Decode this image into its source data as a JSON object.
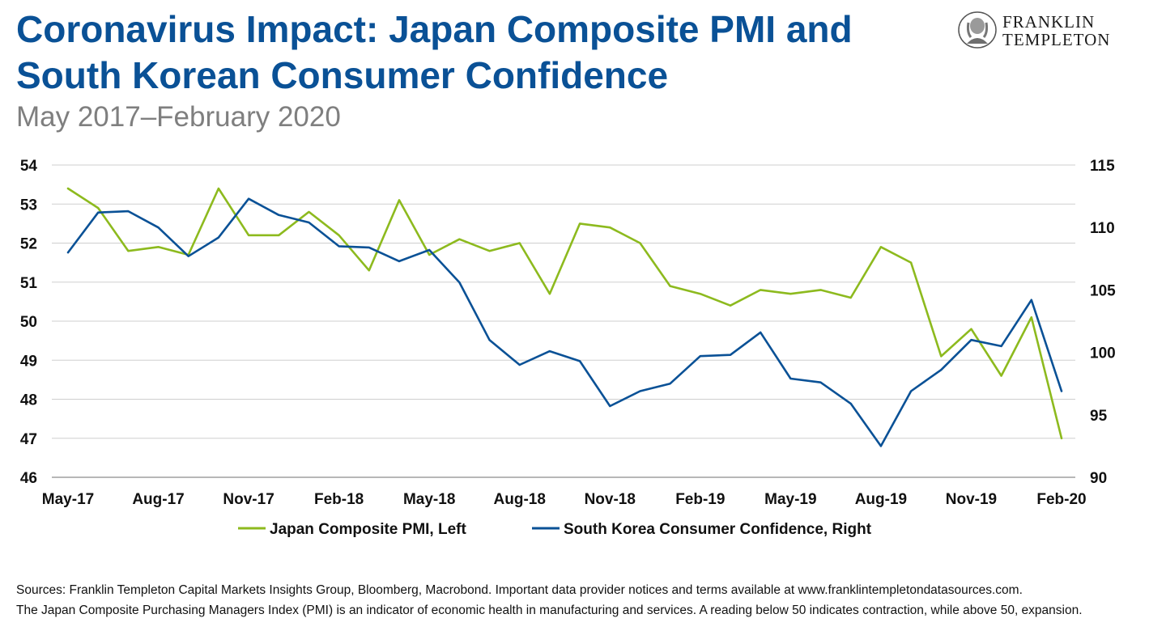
{
  "header": {
    "title_line1": "Coronavirus Impact: Japan Composite PMI and",
    "title_line2": "South Korean Consumer Confidence",
    "subtitle": "May 2017–February 2020"
  },
  "logo": {
    "line1": "FRANKLIN",
    "line2": "TEMPLETON",
    "icon": "benjamin-franklin-portrait-icon"
  },
  "footnotes": {
    "sources": "Sources: Franklin Templeton Capital Markets Insights Group, Bloomberg, Macrobond. Important data provider notices and terms available at www.franklintempletondatasources.com.",
    "note": "The Japan Composite Purchasing Managers Index (PMI) is an indicator of economic health in manufacturing and services. A reading below 50 indicates contraction, while above 50, expansion."
  },
  "chart_data": {
    "type": "line",
    "x": [
      "May-17",
      "Jun-17",
      "Jul-17",
      "Aug-17",
      "Sep-17",
      "Oct-17",
      "Nov-17",
      "Dec-17",
      "Jan-18",
      "Feb-18",
      "Mar-18",
      "Apr-18",
      "May-18",
      "Jun-18",
      "Jul-18",
      "Aug-18",
      "Sep-18",
      "Oct-18",
      "Nov-18",
      "Dec-18",
      "Jan-19",
      "Feb-19",
      "Mar-19",
      "Apr-19",
      "May-19",
      "Jun-19",
      "Jul-19",
      "Aug-19",
      "Sep-19",
      "Oct-19",
      "Nov-19",
      "Dec-19",
      "Jan-20",
      "Feb-20"
    ],
    "x_tick_labels": [
      "May-17",
      "Aug-17",
      "Nov-17",
      "Feb-18",
      "May-18",
      "Aug-18",
      "Nov-18",
      "Feb-19",
      "May-19",
      "Aug-19",
      "Nov-19",
      "Feb-20"
    ],
    "left_axis": {
      "ylim": [
        46,
        54
      ],
      "ticks": [
        46,
        47,
        48,
        49,
        50,
        51,
        52,
        53,
        54
      ]
    },
    "right_axis": {
      "ylim": [
        90,
        115
      ],
      "ticks": [
        90,
        95,
        100,
        105,
        110,
        115
      ]
    },
    "grid": true,
    "legend_position": "bottom",
    "series": [
      {
        "name": "Japan Composite PMI, Left",
        "axis": "left",
        "color": "#8dba1e",
        "values": [
          53.4,
          52.9,
          51.8,
          51.9,
          51.7,
          53.4,
          52.2,
          52.2,
          52.8,
          52.2,
          51.3,
          53.1,
          51.7,
          52.1,
          51.8,
          52.0,
          50.7,
          52.5,
          52.4,
          52.0,
          50.9,
          50.7,
          50.4,
          50.8,
          50.7,
          50.8,
          50.6,
          51.9,
          51.5,
          49.1,
          49.8,
          48.6,
          50.1,
          47.0
        ]
      },
      {
        "name": "South Korea Consumer Confidence, Right",
        "axis": "right",
        "color": "#0a5196",
        "values": [
          108.0,
          111.2,
          111.3,
          110.0,
          107.7,
          109.2,
          112.3,
          111.0,
          110.4,
          108.5,
          108.4,
          107.3,
          108.2,
          105.6,
          101.0,
          99.0,
          100.1,
          99.3,
          95.7,
          96.9,
          97.5,
          99.7,
          99.8,
          101.6,
          97.9,
          97.6,
          95.9,
          92.5,
          96.9,
          98.6,
          101.0,
          100.5,
          104.2,
          96.9
        ]
      }
    ]
  }
}
